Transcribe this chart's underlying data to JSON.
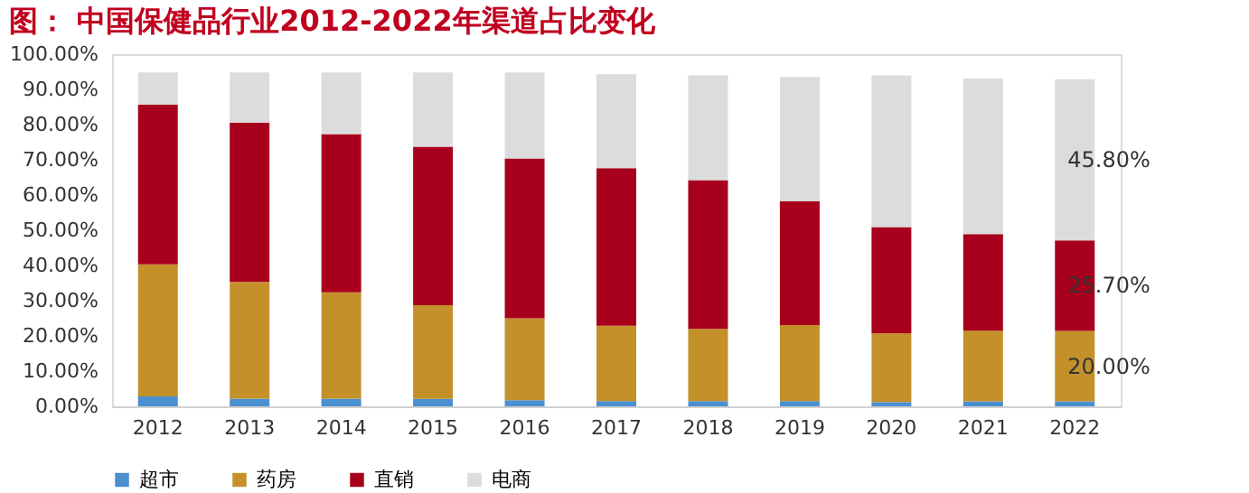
{
  "chart_data": {
    "type": "bar",
    "stacked": true,
    "title": "图： 中国保健品行业2012-2022年渠道占比变化",
    "categories": [
      "2012",
      "2013",
      "2014",
      "2015",
      "2016",
      "2017",
      "2018",
      "2019",
      "2020",
      "2021",
      "2022"
    ],
    "series": [
      {
        "name": "超市",
        "color": "#4a8fcf",
        "values": [
          2.8,
          2.2,
          2.2,
          2.1,
          1.7,
          1.5,
          1.5,
          1.5,
          1.2,
          1.4,
          1.4
        ]
      },
      {
        "name": "药房",
        "color": "#c4902a",
        "values": [
          37.5,
          33.1,
          30.2,
          26.6,
          23.3,
          21.4,
          20.5,
          21.6,
          19.5,
          20.1,
          20.0
        ],
        "value_labels": [
          null,
          null,
          null,
          null,
          null,
          null,
          null,
          null,
          null,
          null,
          "20.00%"
        ]
      },
      {
        "name": "直销",
        "color": "#a8001c",
        "values": [
          45.4,
          45.3,
          44.9,
          45.0,
          45.4,
          44.7,
          42.2,
          35.2,
          30.2,
          27.4,
          25.7
        ],
        "value_labels": [
          null,
          null,
          null,
          null,
          null,
          null,
          null,
          null,
          null,
          null,
          "25.70%"
        ]
      },
      {
        "name": "电商",
        "color": "#dcdcdc",
        "values": [
          9.1,
          14.2,
          17.5,
          21.1,
          24.4,
          26.7,
          29.8,
          35.2,
          43.1,
          44.2,
          45.8
        ],
        "value_labels": [
          null,
          null,
          null,
          null,
          null,
          null,
          null,
          null,
          null,
          null,
          "45.80%"
        ]
      }
    ],
    "ylim": [
      0,
      100
    ],
    "yticks": [
      {
        "value": 0,
        "label": "0.00%"
      },
      {
        "value": 10,
        "label": "10.00%"
      },
      {
        "value": 20,
        "label": "20.00%"
      },
      {
        "value": 30,
        "label": "30.00%"
      },
      {
        "value": 40,
        "label": "40.00%"
      },
      {
        "value": 50,
        "label": "50.00%"
      },
      {
        "value": 60,
        "label": "60.00%"
      },
      {
        "value": 70,
        "label": "70.00%"
      },
      {
        "value": 80,
        "label": "80.00%"
      },
      {
        "value": 90,
        "label": "90.00%"
      },
      {
        "value": 100,
        "label": "100.00%"
      }
    ],
    "grid": false,
    "legend": "bottom"
  }
}
